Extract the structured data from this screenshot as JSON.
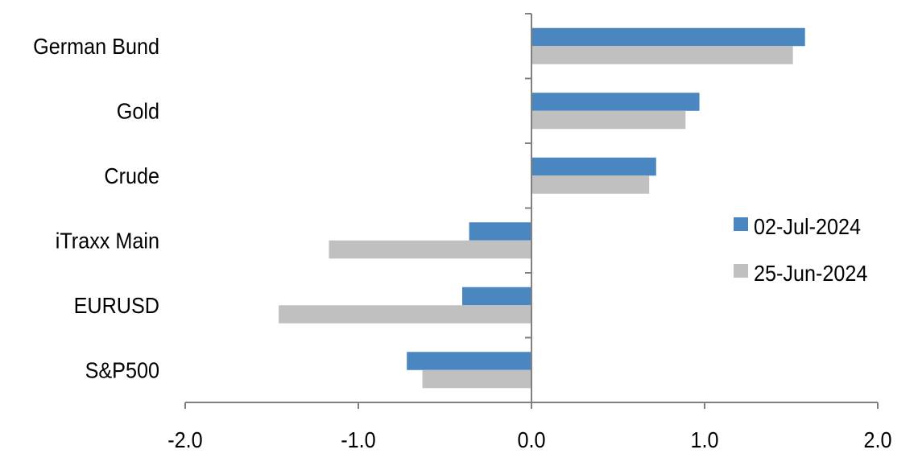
{
  "chart_data": {
    "type": "bar",
    "orientation": "horizontal",
    "categories": [
      "German Bund",
      "Gold",
      "Crude",
      "iTraxx Main",
      "EURUSD",
      "S&P500"
    ],
    "series": [
      {
        "name": "02-Jul-2024",
        "color": "#4a86bf",
        "values": [
          1.58,
          0.97,
          0.72,
          -0.36,
          -0.4,
          -0.72
        ]
      },
      {
        "name": "25-Jun-2024",
        "color": "#c0c0c0",
        "values": [
          1.51,
          0.89,
          0.68,
          -1.17,
          -1.46,
          -0.63
        ]
      }
    ],
    "xlim": [
      -2.0,
      2.0
    ],
    "xticks": [
      "-2.0",
      "-1.0",
      "0.0",
      "1.0",
      "2.0"
    ],
    "title": "",
    "xlabel": "",
    "ylabel": "",
    "grid": false,
    "legend_position": "right",
    "axis_color": "#808080"
  }
}
